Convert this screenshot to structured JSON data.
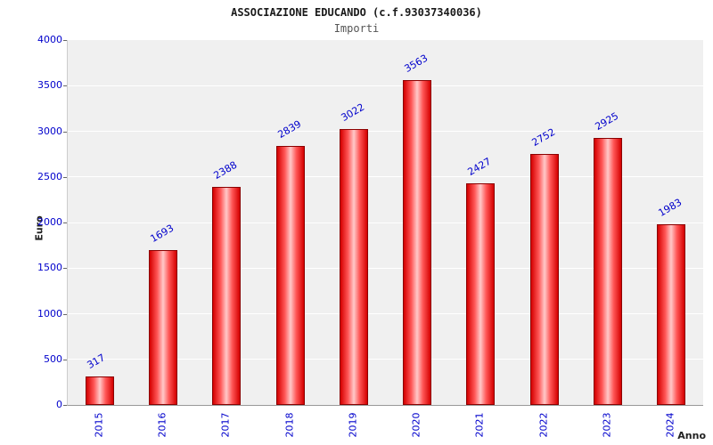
{
  "header": {
    "title": "ASSOCIAZIONE EDUCANDO (c.f.93037340036)",
    "subtitle": "Importi"
  },
  "chart_data": {
    "type": "bar",
    "title": "ASSOCIAZIONE EDUCANDO (c.f.93037340036)",
    "subtitle": "Importi",
    "xlabel": "Anno",
    "ylabel": "Euro",
    "categories": [
      "2015",
      "2016",
      "2017",
      "2018",
      "2019",
      "2020",
      "2021",
      "2022",
      "2023",
      "2024"
    ],
    "values": [
      317,
      1693,
      2388,
      2839,
      3022,
      3563,
      2427,
      2752,
      2925,
      1983
    ],
    "ylim": [
      0,
      4000
    ],
    "ytick_step": 500,
    "ytick_labels": [
      "0",
      "500",
      "1000",
      "1500",
      "2000",
      "2500",
      "3000",
      "3500",
      "4000"
    ],
    "grid": "horizontal",
    "legend_position": "none",
    "colors": {
      "bar_edge": "#d40000",
      "bar_center": "#ffc9c9",
      "bar_border": "#8b0000",
      "value_label": "#0000cc",
      "tick_label": "#0000cc",
      "plot_background": "#f0f0f0",
      "gridline": "#ffffff",
      "title": "#1a1a1a",
      "subtitle": "#555555"
    }
  }
}
